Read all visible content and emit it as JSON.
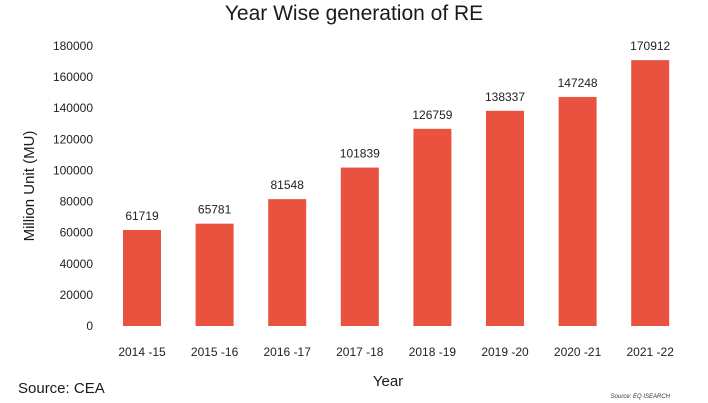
{
  "chart_data": {
    "type": "bar",
    "title": "Year Wise generation of RE",
    "xlabel": "Year",
    "ylabel": "Million Unit (MU)",
    "categories": [
      "2014 -15",
      "2015 -16",
      "2016 -17",
      "2017 -18",
      "2018 -19",
      "2019 -20",
      "2020 -21",
      "2021 -22"
    ],
    "values": [
      61719,
      65781,
      81548,
      101839,
      126759,
      138337,
      147248,
      170912
    ],
    "ylim": [
      0,
      180000
    ],
    "yticks": [
      "0",
      "20000",
      "40000",
      "60000",
      "80000",
      "100000",
      "120000",
      "140000",
      "160000",
      "180000"
    ],
    "grid": false,
    "legend": "none",
    "bar_color": "#e8523f"
  },
  "footer": {
    "source": "Source: CEA",
    "credit": "Source: EQ ISEARCH"
  }
}
